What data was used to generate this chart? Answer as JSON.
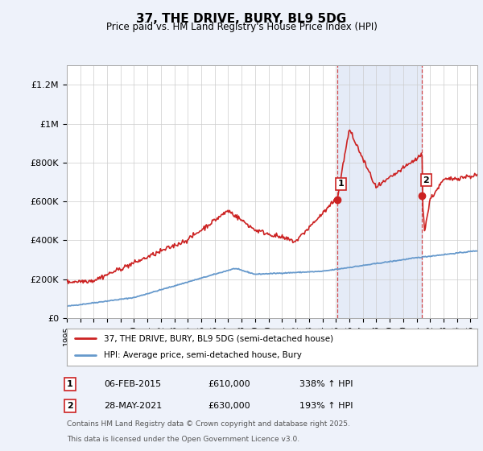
{
  "title": "37, THE DRIVE, BURY, BL9 5DG",
  "subtitle": "Price paid vs. HM Land Registry's House Price Index (HPI)",
  "ylabel_ticks": [
    "£0",
    "£200K",
    "£400K",
    "£600K",
    "£800K",
    "£1M",
    "£1.2M"
  ],
  "ylim": [
    0,
    1300000
  ],
  "xlim_start": 1995,
  "xlim_end": 2025.5,
  "hpi_color": "#6699cc",
  "price_color": "#cc2222",
  "marker1_date": 2015.09,
  "marker1_price": 610000,
  "marker2_date": 2021.41,
  "marker2_price": 630000,
  "marker1_label": "1",
  "marker2_label": "2",
  "legend_line1": "37, THE DRIVE, BURY, BL9 5DG (semi-detached house)",
  "legend_line2": "HPI: Average price, semi-detached house, Bury",
  "table_row1": [
    "1",
    "06-FEB-2015",
    "£610,000",
    "338% ↑ HPI"
  ],
  "table_row2": [
    "2",
    "28-MAY-2021",
    "£630,000",
    "193% ↑ HPI"
  ],
  "footnote1": "Contains HM Land Registry data © Crown copyright and database right 2025.",
  "footnote2": "This data is licensed under the Open Government Licence v3.0.",
  "background_color": "#eef2fa",
  "plot_bg_color": "#ffffff",
  "grid_color": "#cccccc",
  "vline_color": "#cc2222",
  "span_color": "#ccd9f0"
}
